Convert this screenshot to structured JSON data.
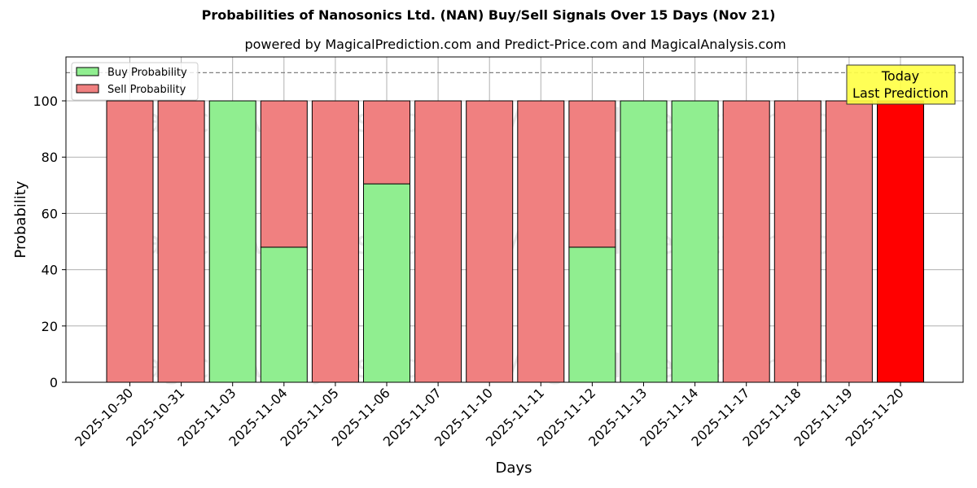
{
  "chart_data": {
    "type": "bar",
    "stacked": true,
    "title": "Probabilities of Nanosonics Ltd. (NAN) Buy/Sell Signals Over 15 Days (Nov 21)",
    "subtitle": "powered by MagicalPrediction.com and Predict-Price.com and MagicalAnalysis.com",
    "xlabel": "Days",
    "ylabel": "Probability",
    "ylim": [
      0,
      115
    ],
    "yticks": [
      0,
      20,
      40,
      60,
      80,
      100
    ],
    "grid": true,
    "legend_position": "upper left",
    "reference_line": {
      "y": 110,
      "style": "dashed",
      "color": "#808080"
    },
    "categories": [
      "2025-10-30",
      "2025-10-31",
      "2025-11-03",
      "2025-11-04",
      "2025-11-05",
      "2025-11-06",
      "2025-11-07",
      "2025-11-10",
      "2025-11-11",
      "2025-11-12",
      "2025-11-13",
      "2025-11-14",
      "2025-11-17",
      "2025-11-18",
      "2025-11-19",
      "2025-11-20"
    ],
    "series": [
      {
        "name": "Buy Probability",
        "color": "#90ee90",
        "values": [
          0,
          0,
          100,
          48,
          0,
          70.5,
          0,
          0,
          0,
          48,
          100,
          100,
          0,
          0,
          0,
          0
        ]
      },
      {
        "name": "Sell Probability",
        "color": "#f08080",
        "values": [
          100,
          100,
          0,
          52,
          100,
          29.5,
          100,
          100,
          100,
          52,
          0,
          0,
          100,
          100,
          100,
          100
        ]
      }
    ],
    "highlight": {
      "index": 15,
      "color": "#ff0000",
      "label": "Today\nLast Prediction",
      "label_lines": [
        "Today",
        "Last Prediction"
      ],
      "label_bg": "#ffff44"
    },
    "watermarks": [
      "MagicalAnalysis.com",
      "MagicalPrediction.com"
    ]
  },
  "header": {
    "title": "Probabilities of Nanosonics Ltd. (NAN) Buy/Sell Signals Over 15 Days (Nov 21)",
    "subtitle": "powered by MagicalPrediction.com and Predict-Price.com and MagicalAnalysis.com"
  },
  "legend": {
    "items": [
      {
        "label": "Buy Probability",
        "color": "#90ee90"
      },
      {
        "label": "Sell Probability",
        "color": "#f08080"
      }
    ]
  },
  "annotation": {
    "line1": "Today",
    "line2": "Last Prediction"
  },
  "axes": {
    "xlabel": "Days",
    "ylabel": "Probability"
  }
}
